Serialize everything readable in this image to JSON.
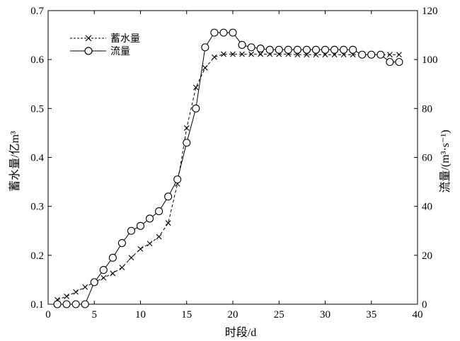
{
  "chart_data": {
    "type": "line",
    "xlabel": "时段/d",
    "ylabel_left": "蓄水量/亿m³",
    "ylabel_right": "流量/(m³·s⁻¹)",
    "xlim": [
      0,
      40
    ],
    "ylim_left": [
      0.1,
      0.7
    ],
    "ylim_right": [
      0,
      120
    ],
    "x_ticks": [
      0,
      5,
      10,
      15,
      20,
      25,
      30,
      35,
      40
    ],
    "y_left_ticks": [
      0.1,
      0.2,
      0.3,
      0.4,
      0.5,
      0.6,
      0.7
    ],
    "y_right_ticks": [
      0,
      20,
      40,
      60,
      80,
      100,
      120
    ],
    "x_tick_labels": [
      "0",
      "5",
      "10",
      "15",
      "20",
      "25",
      "30",
      "35",
      "40"
    ],
    "y_left_tick_labels": [
      "0.1",
      "0.2",
      "0.3",
      "0.4",
      "0.5",
      "0.6",
      "0.7"
    ],
    "y_right_tick_labels": [
      "0",
      "20",
      "40",
      "60",
      "80",
      "100",
      "120"
    ],
    "grid": false,
    "legend_position": "top-left",
    "series": [
      {
        "name": "蓄水量",
        "axis": "left",
        "marker": "x",
        "line_style": "dashed",
        "x": [
          1,
          2,
          3,
          4,
          5,
          6,
          7,
          8,
          9,
          10,
          11,
          12,
          13,
          14,
          15,
          16,
          17,
          18,
          19,
          20,
          21,
          22,
          23,
          24,
          25,
          26,
          27,
          28,
          29,
          30,
          31,
          32,
          33,
          34,
          35,
          36,
          37,
          38
        ],
        "values": [
          0.109,
          0.116,
          0.125,
          0.135,
          0.145,
          0.154,
          0.163,
          0.175,
          0.195,
          0.213,
          0.224,
          0.238,
          0.266,
          0.346,
          0.46,
          0.543,
          0.583,
          0.605,
          0.611,
          0.611,
          0.611,
          0.611,
          0.611,
          0.611,
          0.611,
          0.611,
          0.61,
          0.61,
          0.61,
          0.61,
          0.61,
          0.61,
          0.61,
          0.61,
          0.61,
          0.61,
          0.61,
          0.61
        ]
      },
      {
        "name": "流量",
        "axis": "right",
        "marker": "o",
        "line_style": "solid",
        "x": [
          1,
          2,
          3,
          4,
          5,
          6,
          7,
          8,
          9,
          10,
          11,
          12,
          13,
          14,
          15,
          16,
          17,
          18,
          19,
          20,
          21,
          22,
          23,
          24,
          25,
          26,
          27,
          28,
          29,
          30,
          31,
          32,
          33,
          34,
          35,
          36,
          37,
          38
        ],
        "values": [
          0,
          0,
          0,
          0,
          9,
          14,
          19,
          25,
          30,
          32,
          35,
          38,
          44,
          51,
          66,
          80,
          105,
          111,
          111,
          111,
          106,
          105,
          104.5,
          104,
          104,
          104,
          104,
          104,
          104,
          104,
          104,
          104,
          104,
          102,
          102,
          102,
          99,
          99
        ]
      }
    ]
  }
}
